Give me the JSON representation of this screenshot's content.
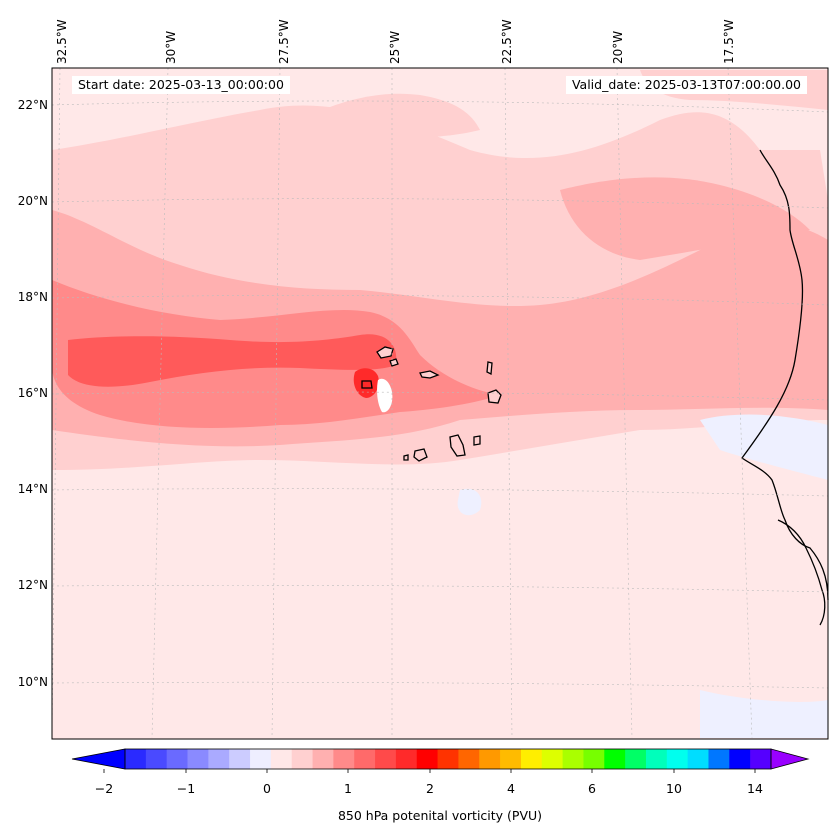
{
  "map": {
    "longitude_labels": [
      "32.5°W",
      "30°W",
      "27.5°W",
      "25°W",
      "22.5°W",
      "20°W",
      "17.5°W"
    ],
    "latitude_labels": [
      "22°N",
      "20°N",
      "18°N",
      "16°N",
      "14°N",
      "12°N",
      "10°N"
    ],
    "start_date": "Start date: 2025-03-13_00:00:00",
    "valid_date": "Valid_date: 2025-03-13T07:00:00.00",
    "field": "850 hPa potential vorticity",
    "colors": {
      "background_level": "#ffe8e8",
      "level_2": "#ffd0d0",
      "level_3": "#ffb0b0",
      "level_4": "#ff8a8a",
      "level_5": "#ff5a5a",
      "level_6": "#ff2a2a",
      "negative_light": "#eef0ff",
      "coastline": "#000000"
    }
  },
  "colorbar": {
    "tick_labels": [
      "−2",
      "−1",
      "0",
      "1",
      "2",
      "4",
      "6",
      "10",
      "14"
    ],
    "label": "850 hPa potenital vorticity (PVU)",
    "colors": [
      "#0000ff",
      "#2a2aff",
      "#4a4aff",
      "#6a6aff",
      "#8a8aff",
      "#aaaaff",
      "#ccccff",
      "#eeeeff",
      "#ffe8e8",
      "#ffd0d0",
      "#ffb0b0",
      "#ff8a8a",
      "#ff6a6a",
      "#ff4a4a",
      "#ff2a2a",
      "#ff0000",
      "#ff3300",
      "#ff6600",
      "#ff9900",
      "#ffbb00",
      "#ffee00",
      "#ddff00",
      "#aaff00",
      "#77ff00",
      "#00ff00",
      "#00ff66",
      "#00ffbb",
      "#00ffee",
      "#00ddff",
      "#0077ff",
      "#0000ff",
      "#5500ff",
      "#9900ff"
    ]
  }
}
